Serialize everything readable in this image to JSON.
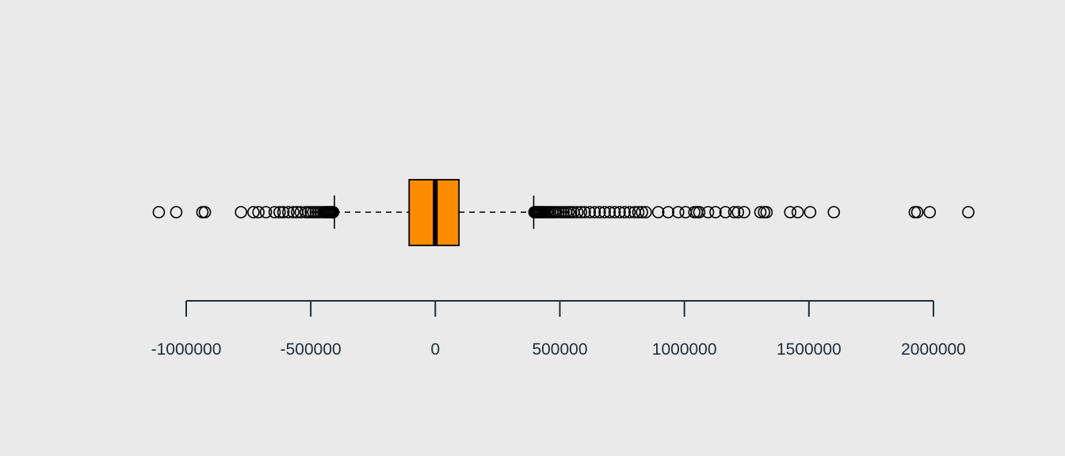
{
  "colors": {
    "background": "#eaeaea",
    "box_fill": "#ff8c00",
    "stroke": "#000000",
    "axis": "#1e2d3b"
  },
  "chart_data": {
    "type": "boxplot",
    "orientation": "horizontal",
    "title": "",
    "xlabel": "",
    "ylabel": "",
    "xlim": [
      -1000000,
      2000000
    ],
    "grid": false,
    "x_ticks": [
      -1000000,
      -500000,
      0,
      500000,
      1000000,
      1500000,
      2000000
    ],
    "x_tick_labels": [
      "-1000000",
      "-500000",
      "0",
      "500000",
      "1000000",
      "1500000",
      "2000000"
    ],
    "box": {
      "whisker_low": -405000,
      "q1": -105000,
      "median": 0,
      "q3": 95000,
      "whisker_high": 395000
    },
    "outliers": [
      -1110000,
      -1040000,
      -935000,
      -925000,
      -780000,
      -730000,
      -710000,
      -680000,
      -645000,
      -625000,
      -610000,
      -590000,
      -570000,
      -555000,
      -540000,
      -520000,
      -510000,
      -500000,
      -490000,
      -480000,
      -470000,
      -460000,
      -450000,
      -445000,
      -440000,
      -435000,
      -430000,
      -425000,
      -420000,
      -415000,
      -410000,
      398000,
      402000,
      406000,
      410000,
      415000,
      420000,
      425000,
      430000,
      435000,
      440000,
      448000,
      455000,
      462000,
      470000,
      478000,
      485000,
      495000,
      505000,
      515000,
      525000,
      535000,
      545000,
      555000,
      570000,
      585000,
      600000,
      620000,
      640000,
      660000,
      680000,
      700000,
      720000,
      740000,
      760000,
      780000,
      800000,
      815000,
      830000,
      845000,
      895000,
      935000,
      975000,
      1005000,
      1040000,
      1050000,
      1060000,
      1095000,
      1125000,
      1165000,
      1200000,
      1215000,
      1240000,
      1305000,
      1320000,
      1330000,
      1425000,
      1455000,
      1505000,
      1600000,
      1925000,
      1935000,
      1985000,
      2140000
    ]
  }
}
